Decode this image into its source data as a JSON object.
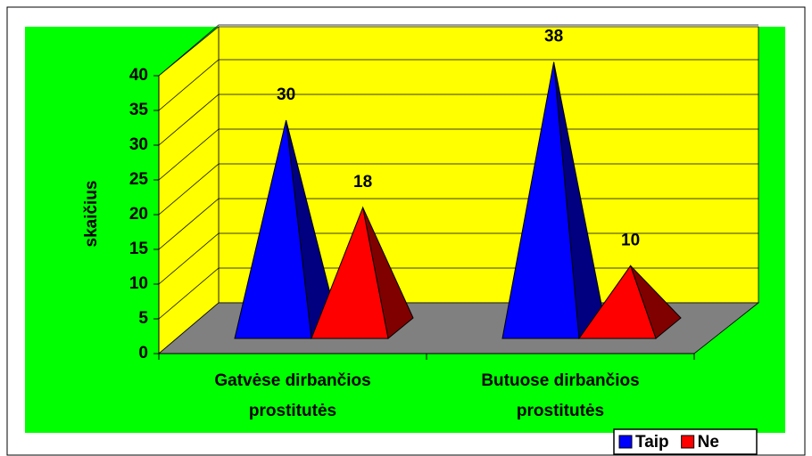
{
  "chart_data": {
    "type": "pyramid3d",
    "y_axis_label": "skaičius",
    "categories": [
      "Gatvėse dirbančios prostitutės",
      "Butuose dirbančios prostitutės"
    ],
    "series": [
      {
        "name": "Taip",
        "color": "#0000ff",
        "values": [
          30,
          38
        ]
      },
      {
        "name": "Ne",
        "color": "#ff0000",
        "values": [
          18,
          10
        ]
      }
    ],
    "ylim": [
      0,
      40
    ],
    "yticks": [
      0,
      5,
      10,
      15,
      20,
      25,
      30,
      35,
      40
    ],
    "grid": true,
    "legend": "bottom-right"
  }
}
